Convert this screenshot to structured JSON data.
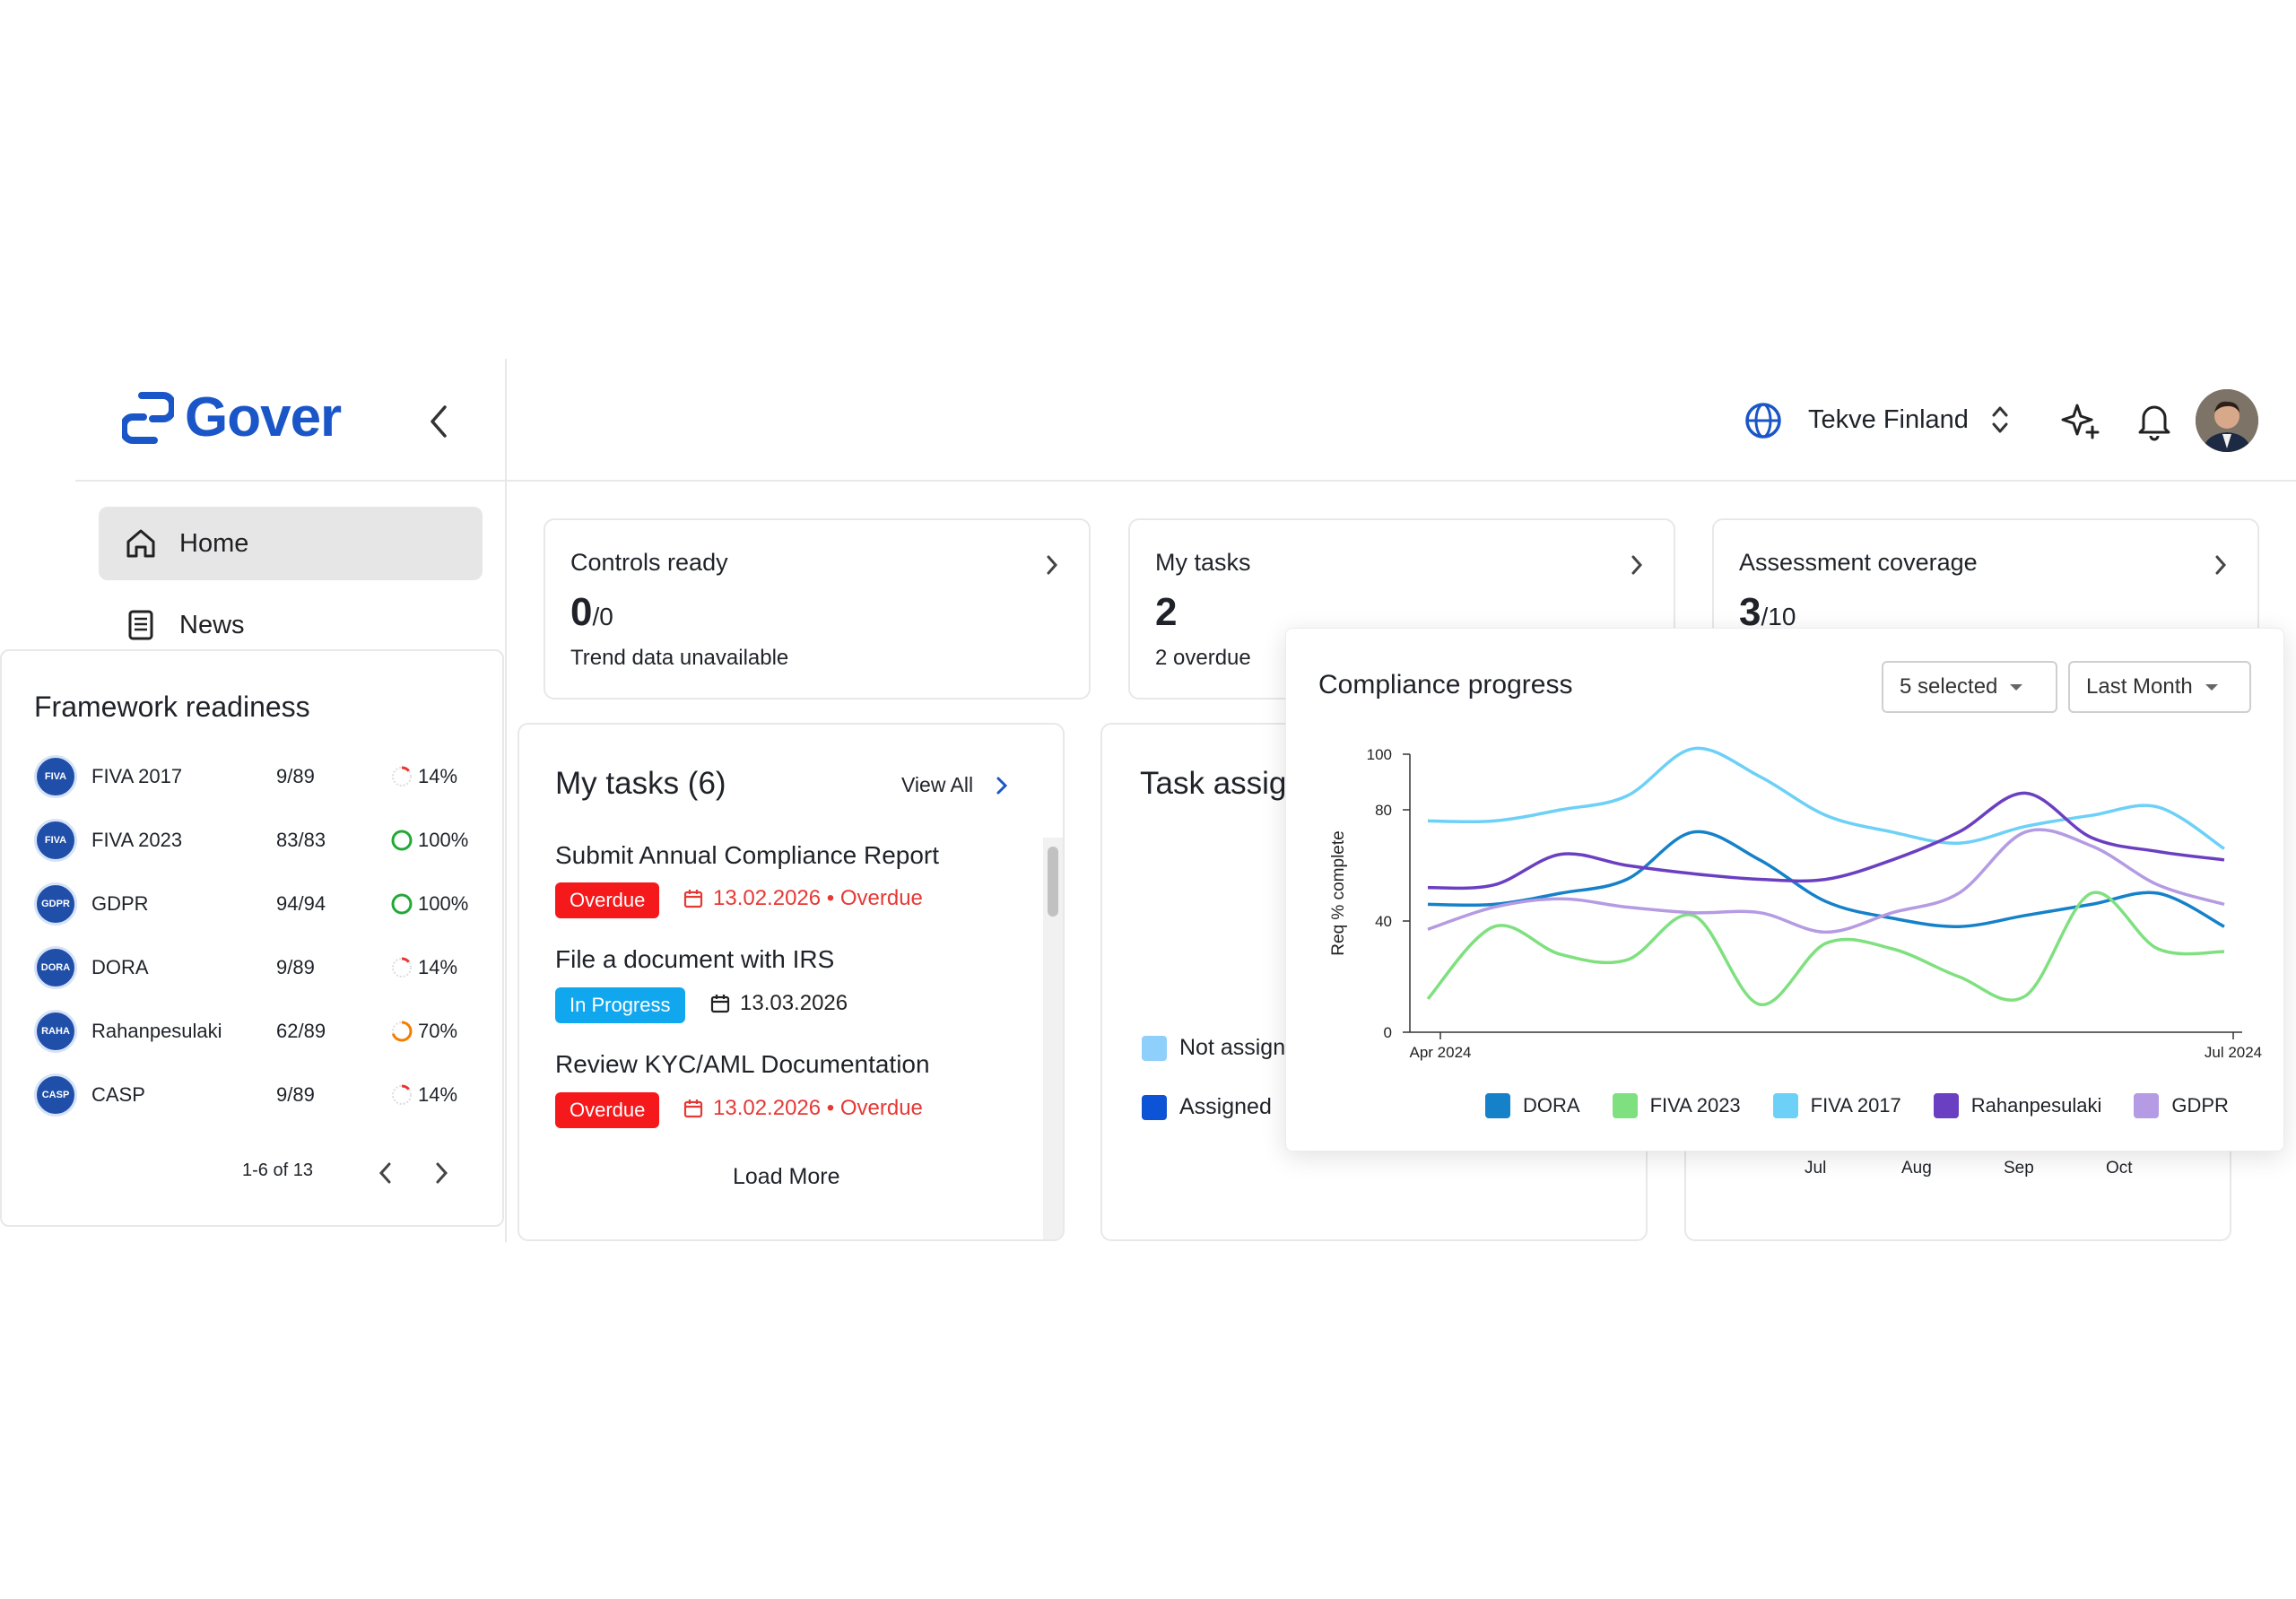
{
  "app": {
    "logo_text": "Gover"
  },
  "header": {
    "org_name": "Tekve Finland"
  },
  "nav": {
    "home_label": "Home",
    "news_label": "News"
  },
  "framework_readiness": {
    "title": "Framework readiness",
    "rows": [
      {
        "name": "FIVA 2017",
        "count": "9/89",
        "pct": "14%",
        "fraction": 0.14,
        "color": "#e53935",
        "logo": "FIVA"
      },
      {
        "name": "FIVA 2023",
        "count": "83/83",
        "pct": "100%",
        "fraction": 1.0,
        "color": "#22a837",
        "logo": "FIVA"
      },
      {
        "name": "GDPR",
        "count": "94/94",
        "pct": "100%",
        "fraction": 1.0,
        "color": "#22a837",
        "logo": "GDPR"
      },
      {
        "name": "DORA",
        "count": "9/89",
        "pct": "14%",
        "fraction": 0.14,
        "color": "#e53935",
        "logo": "DORA"
      },
      {
        "name": "Rahanpesulaki",
        "count": "62/89",
        "pct": "70%",
        "fraction": 0.7,
        "color": "#f57c00",
        "logo": "RAHA"
      },
      {
        "name": "CASP",
        "count": "9/89",
        "pct": "14%",
        "fraction": 0.14,
        "color": "#e53935",
        "logo": "CASP"
      }
    ],
    "pagination": "1-6 of 13"
  },
  "stats": {
    "controls": {
      "title": "Controls ready",
      "value": "0",
      "total": "/0",
      "sub": "Trend data unavailable"
    },
    "tasks": {
      "title": "My tasks",
      "value": "2",
      "sub": "2 overdue"
    },
    "coverage": {
      "title": "Assessment coverage",
      "value": "3",
      "total": "/10"
    }
  },
  "my_tasks": {
    "title": "My tasks (6)",
    "view_all": "View All",
    "load_more": "Load More",
    "items": [
      {
        "title": "Submit Annual Compliance Report",
        "status": "Overdue",
        "due": "13.02.2026 • Overdue"
      },
      {
        "title": "File a document with IRS",
        "status": "In Progress",
        "due": "13.03.2026"
      },
      {
        "title": "Review KYC/AML Documentation",
        "status": "Overdue",
        "due": "13.02.2026 • Overdue"
      }
    ]
  },
  "task_assign": {
    "title": "Task assig",
    "legend_not": "Not assign",
    "legend_assigned": "Assigned"
  },
  "bg_chart": {
    "months": [
      "Jul",
      "Aug",
      "Sep",
      "Oct"
    ]
  },
  "compliance": {
    "title": "Compliance progress",
    "series_filter": "5 selected",
    "period_filter": "Last Month"
  },
  "chart_data": {
    "type": "line",
    "title": "Compliance progress",
    "ylabel": "Req % complete",
    "ylim": [
      0,
      100
    ],
    "yticks": [
      0,
      40,
      80,
      100
    ],
    "x_labels": [
      "Apr 2024",
      "Jul 2024"
    ],
    "x": [
      0,
      1,
      2,
      3,
      4,
      5,
      6,
      7,
      8,
      9,
      10,
      11,
      12
    ],
    "series": [
      {
        "name": "DORA",
        "color": "#1581c9",
        "values": [
          46,
          46,
          50,
          55,
          72,
          62,
          47,
          41,
          38,
          42,
          46,
          50,
          38
        ]
      },
      {
        "name": "FIVA 2023",
        "color": "#7fe07f",
        "values": [
          12,
          38,
          28,
          26,
          42,
          10,
          32,
          30,
          20,
          13,
          50,
          30,
          29
        ]
      },
      {
        "name": "FIVA 2017",
        "color": "#6cd0f7",
        "values": [
          76,
          76,
          80,
          85,
          102,
          92,
          78,
          72,
          68,
          74,
          78,
          81,
          66
        ]
      },
      {
        "name": "Rahanpesulaki",
        "color": "#6b3fc1",
        "values": [
          52,
          53,
          64,
          60,
          57,
          55,
          55,
          62,
          72,
          86,
          70,
          65,
          62
        ]
      },
      {
        "name": "GDPR",
        "color": "#b49be3",
        "values": [
          37,
          45,
          48,
          45,
          43,
          43,
          36,
          43,
          50,
          72,
          67,
          53,
          46
        ]
      }
    ]
  }
}
